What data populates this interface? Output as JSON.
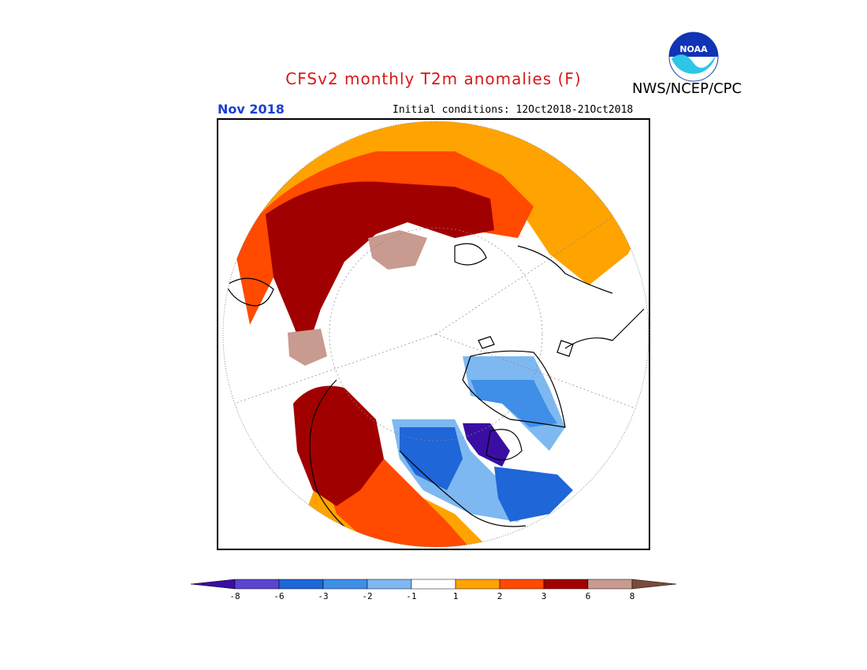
{
  "title": "CFSv2 monthly T2m anomalies (F)",
  "agency": "NWS/NCEP/CPC",
  "logo_text": "NOAA",
  "month": "Nov 2018",
  "initial_conditions": "Initial conditions: 12Oct2018-21Oct2018",
  "colorbar": {
    "tick_labels": [
      "-8",
      "-6",
      "-3",
      "-2",
      "-1",
      "1",
      "2",
      "3",
      "6",
      "8"
    ],
    "colors": [
      "#3a0ea3",
      "#5a44d0",
      "#1f66d8",
      "#3f8ee8",
      "#7db8f0",
      "#ffffff",
      "#ffa300",
      "#ff4a00",
      "#a10000",
      "#c89a90",
      "#7a4a3a"
    ]
  }
}
